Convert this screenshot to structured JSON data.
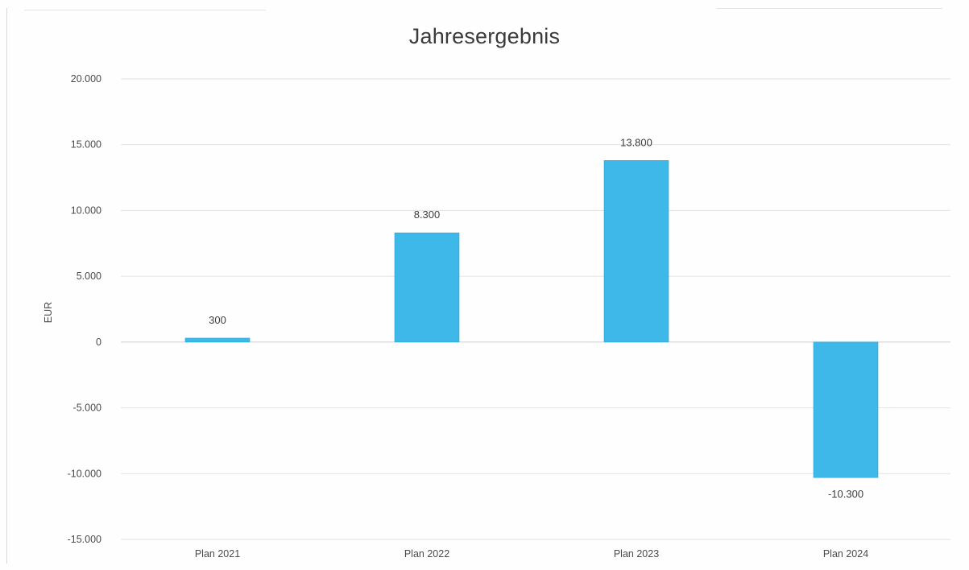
{
  "chart_data": {
    "type": "bar",
    "title": "Jahresergebnis",
    "xlabel": "",
    "ylabel": "EUR",
    "categories": [
      "Plan 2021",
      "Plan 2022",
      "Plan 2023",
      "Plan 2024"
    ],
    "values": [
      300,
      8300,
      13800,
      -10300
    ],
    "data_labels": [
      "300",
      "8.300",
      "13.800",
      "-10.300"
    ],
    "ylim": [
      -15000,
      20000
    ],
    "yticks": [
      20000,
      15000,
      10000,
      5000,
      0,
      -5000,
      -10000,
      -15000
    ],
    "ytick_labels": [
      "20.000",
      "15.000",
      "10.000",
      "5.000",
      "0",
      "-5.000",
      "-10.000",
      "-15.000"
    ],
    "grid": true,
    "legend": "none",
    "bar_color": "#3db8e8",
    "bar_edge_color": "#2aa6d8"
  }
}
